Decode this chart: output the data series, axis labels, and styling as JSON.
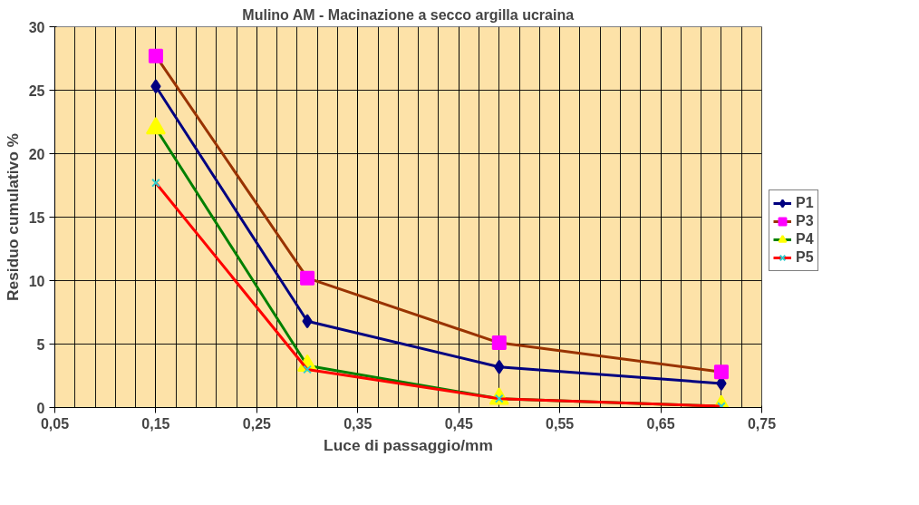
{
  "chart_data": {
    "type": "line",
    "title": "Mulino AM - Macinazione a secco argilla ucraina",
    "xlabel": "Luce di passaggio/mm",
    "ylabel": "Residuo cumulativo %",
    "x": [
      0.15,
      0.3,
      0.49,
      0.71
    ],
    "series": [
      {
        "name": "P1",
        "color": "#000080",
        "marker": "diamond",
        "colors": [
          "#000080",
          "#000080",
          "#000080",
          "#000080"
        ],
        "values": [
          25.3,
          6.8,
          3.2,
          1.9
        ]
      },
      {
        "name": "P3",
        "color": "#993300",
        "marker": "square",
        "colors": [
          "#ff00ff",
          "#ff00ff",
          "#ff00ff",
          "#ff00ff"
        ],
        "values": [
          27.7,
          10.2,
          5.1,
          2.8
        ]
      },
      {
        "name": "P4",
        "color": "#008000",
        "marker": "triangle",
        "colors": [
          "#ffff00",
          "#ffff00",
          "#ffff00",
          "#ffff00"
        ],
        "values": [
          22.0,
          3.3,
          0.7,
          0.1
        ]
      },
      {
        "name": "P5",
        "color": "#ff0000",
        "marker": "cross",
        "colors": [
          "#33cccc",
          "#33cccc",
          "#33cccc",
          "#33cccc"
        ],
        "values": [
          17.7,
          3.0,
          0.7,
          0.1
        ]
      }
    ],
    "xlim": [
      0.05,
      0.75
    ],
    "xticks": [
      {
        "value": 0.05,
        "label": "0,05"
      },
      {
        "value": 0.15,
        "label": "0,15"
      },
      {
        "value": 0.25,
        "label": "0,25"
      },
      {
        "value": 0.35,
        "label": "0,35"
      },
      {
        "value": 0.45,
        "label": "0,45"
      },
      {
        "value": 0.55,
        "label": "0,55"
      },
      {
        "value": 0.65,
        "label": "0,65"
      },
      {
        "value": 0.75,
        "label": "0,75"
      }
    ],
    "ylim": [
      0,
      30
    ],
    "yticks": [
      0,
      5,
      10,
      15,
      20,
      25,
      30
    ],
    "grid": true,
    "legend": "right",
    "line_style": "solid"
  }
}
